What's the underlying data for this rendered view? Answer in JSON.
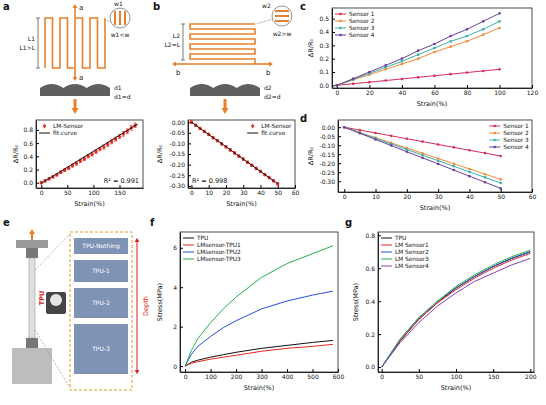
{
  "chart_data": [
    {
      "type": "scatter",
      "panel": "a",
      "xlabel": "Strain(%)",
      "ylabel": "ΔR/R₀",
      "xlim": [
        -10,
        195
      ],
      "ylim": [
        -0.08,
        0.95
      ],
      "xticks": [
        0,
        50,
        100,
        150
      ],
      "yticks": [
        {
          "value": 0,
          "label": "0.0"
        },
        0.2,
        0.4,
        0.6,
        0.8
      ],
      "legend": "upper left",
      "annotation": "R² = 0.991",
      "series": [
        {
          "name": "LM-Sensor",
          "type": "scatter",
          "marker": "circle",
          "color": "#e8271f",
          "x": [
            0,
            7.5,
            15,
            22.5,
            30,
            37.5,
            45,
            52.5,
            60,
            67.5,
            75,
            82.5,
            90,
            97.5,
            105,
            112.5,
            120,
            127.5,
            135,
            142.5,
            150,
            157.5,
            165,
            172.5,
            180
          ],
          "values": [
            0,
            0.03,
            0.06,
            0.09,
            0.12,
            0.16,
            0.19,
            0.22,
            0.26,
            0.29,
            0.33,
            0.36,
            0.4,
            0.43,
            0.47,
            0.51,
            0.54,
            0.58,
            0.62,
            0.66,
            0.7,
            0.74,
            0.78,
            0.83,
            0.87
          ],
          "errors": [
            0.02,
            0.02,
            0.02,
            0.02,
            0.02,
            0.02,
            0.02,
            0.02,
            0.025,
            0.025,
            0.025,
            0.025,
            0.025,
            0.025,
            0.025,
            0.025,
            0.03,
            0.03,
            0.03,
            0.03,
            0.03,
            0.035,
            0.035,
            0.035,
            0.035
          ]
        },
        {
          "name": "fit curve",
          "type": "line",
          "line_style": "solid",
          "color": "#111111",
          "x": [
            0,
            185
          ],
          "values": [
            -0.01,
            0.89
          ]
        }
      ]
    },
    {
      "type": "scatter",
      "panel": "b",
      "xlabel": "Strain(%)",
      "ylabel": "ΔR/R₀",
      "xlim": [
        -2,
        60
      ],
      "ylim": [
        -0.31,
        0.01
      ],
      "xticks": [
        0,
        10,
        20,
        30,
        40,
        50,
        60
      ],
      "yticks": [
        {
          "value": 0,
          "label": "0.00"
        },
        -0.05,
        {
          "value": -0.1,
          "label": "-0.10"
        },
        -0.15,
        {
          "value": -0.2,
          "label": "-0.20"
        },
        -0.25,
        {
          "value": -0.3,
          "label": "-0.30"
        }
      ],
      "legend": "upper right",
      "annotation": "R² = 0.998",
      "series": [
        {
          "name": "LM-Sensor",
          "type": "scatter",
          "marker": "circle",
          "color": "#e8271f",
          "x": [
            0,
            2.5,
            5,
            7.5,
            10,
            12.5,
            15,
            17.5,
            20,
            22.5,
            25,
            27.5,
            30,
            32.5,
            35,
            37.5,
            40,
            42.5,
            45,
            47.5,
            50
          ],
          "values": [
            0,
            -0.015,
            -0.03,
            -0.044,
            -0.058,
            -0.073,
            -0.087,
            -0.102,
            -0.116,
            -0.131,
            -0.145,
            -0.16,
            -0.174,
            -0.189,
            -0.203,
            -0.218,
            -0.232,
            -0.247,
            -0.261,
            -0.276,
            -0.29
          ],
          "errors": [
            0.006,
            0.006,
            0.006,
            0.006,
            0.006,
            0.006,
            0.006,
            0.006,
            0.006,
            0.006,
            0.006,
            0.006,
            0.006,
            0.006,
            0.006,
            0.006,
            0.006,
            0.006,
            0.006,
            0.006,
            0.006
          ]
        },
        {
          "name": "fit curve",
          "type": "line",
          "line_style": "solid",
          "color": "#111111",
          "x": [
            0,
            50
          ],
          "values": [
            0,
            -0.29
          ]
        }
      ]
    },
    {
      "type": "line",
      "panel": "c",
      "xlabel": "Strain(%)",
      "ylabel": "ΔR/R₀",
      "xlim": [
        -3,
        120
      ],
      "ylim": [
        -0.02,
        0.58
      ],
      "xticks": [
        0,
        20,
        40,
        60,
        80,
        100,
        120
      ],
      "yticks": [
        {
          "value": 0,
          "label": "0.0"
        },
        0.1,
        0.2,
        0.3,
        0.4,
        0.5
      ],
      "legend": "upper left",
      "x": [
        0,
        10,
        20,
        30,
        40,
        50,
        60,
        70,
        80,
        90,
        100
      ],
      "series": [
        {
          "name": "Sensor 1",
          "color": "#d62d5a",
          "marker": "circle",
          "values": [
            0,
            0.012,
            0.024,
            0.036,
            0.048,
            0.06,
            0.072,
            0.084,
            0.096,
            0.108,
            0.12
          ]
        },
        {
          "name": "Sensor 2",
          "color": "#f08c3a",
          "marker": "circle",
          "values": [
            0,
            0.04,
            0.08,
            0.12,
            0.16,
            0.2,
            0.25,
            0.29,
            0.33,
            0.38,
            0.43
          ]
        },
        {
          "name": "Sensor 3",
          "color": "#36b3a8",
          "marker": "circle",
          "values": [
            0,
            0.045,
            0.09,
            0.135,
            0.18,
            0.23,
            0.28,
            0.33,
            0.37,
            0.42,
            0.48
          ]
        },
        {
          "name": "Sensor 4",
          "color": "#6b3fa0",
          "marker": "circle",
          "values": [
            0,
            0.05,
            0.1,
            0.15,
            0.2,
            0.26,
            0.31,
            0.37,
            0.42,
            0.48,
            0.54
          ]
        }
      ]
    },
    {
      "type": "line",
      "panel": "d",
      "xlabel": "Strain(%)",
      "ylabel": "ΔR/R₀",
      "xlim": [
        -2,
        60
      ],
      "ylim": [
        -0.36,
        0.04
      ],
      "xticks": [
        0,
        10,
        20,
        30,
        40,
        50,
        60
      ],
      "yticks": [
        {
          "value": 0,
          "label": "0.00"
        },
        -0.05,
        {
          "value": -0.1,
          "label": "-0.10"
        },
        -0.15,
        {
          "value": -0.2,
          "label": "-0.20"
        },
        -0.25,
        {
          "value": -0.3,
          "label": "-0.30"
        }
      ],
      "legend": "upper right",
      "x": [
        0,
        5,
        10,
        15,
        20,
        25,
        30,
        35,
        40,
        45,
        50
      ],
      "series": [
        {
          "name": "Sensor 1",
          "color": "#d62d5a",
          "marker": "circle",
          "values": [
            0,
            -0.016,
            -0.032,
            -0.048,
            -0.064,
            -0.08,
            -0.096,
            -0.112,
            -0.128,
            -0.144,
            -0.16
          ]
        },
        {
          "name": "Sensor 2",
          "color": "#f08c3a",
          "marker": "circle",
          "values": [
            0,
            -0.029,
            -0.058,
            -0.087,
            -0.116,
            -0.145,
            -0.174,
            -0.203,
            -0.232,
            -0.261,
            -0.29
          ]
        },
        {
          "name": "Sensor 3",
          "color": "#36b3a8",
          "marker": "circle",
          "values": [
            0,
            -0.031,
            -0.062,
            -0.093,
            -0.124,
            -0.155,
            -0.186,
            -0.217,
            -0.248,
            -0.279,
            -0.31
          ]
        },
        {
          "name": "Sensor 4",
          "color": "#6b3fa0",
          "marker": "circle",
          "values": [
            0,
            -0.034,
            -0.068,
            -0.102,
            -0.136,
            -0.17,
            -0.204,
            -0.238,
            -0.272,
            -0.306,
            -0.34
          ]
        }
      ]
    },
    {
      "type": "line",
      "panel": "f",
      "xlabel": "Strain(%)",
      "ylabel": "Stress(MPa)",
      "xlim": [
        -20,
        600
      ],
      "ylim": [
        -0.3,
        6.8
      ],
      "xticks": [
        0,
        100,
        200,
        300,
        400,
        500,
        600
      ],
      "yticks": [
        0,
        2,
        4,
        6
      ],
      "legend": "upper left",
      "x": [
        0,
        25,
        50,
        100,
        150,
        200,
        300,
        400,
        500,
        580
      ],
      "series": [
        {
          "name": "TPU",
          "color": "#111111",
          "values": [
            0,
            0.2,
            0.3,
            0.45,
            0.58,
            0.7,
            0.9,
            1.05,
            1.2,
            1.3
          ]
        },
        {
          "name": "LMsensor-TPU1",
          "color": "#e8271f",
          "values": [
            0,
            0.15,
            0.22,
            0.35,
            0.45,
            0.55,
            0.75,
            0.9,
            1.0,
            1.1
          ]
        },
        {
          "name": "LMsensor-TPU2",
          "color": "#2450d8",
          "values": [
            0,
            0.6,
            1.0,
            1.5,
            1.95,
            2.3,
            2.9,
            3.3,
            3.6,
            3.8
          ]
        },
        {
          "name": "LMsensor-TPU3",
          "color": "#23b04a",
          "values": [
            0,
            0.8,
            1.4,
            2.2,
            2.9,
            3.5,
            4.5,
            5.2,
            5.7,
            6.1
          ]
        }
      ]
    },
    {
      "type": "line",
      "panel": "g",
      "xlabel": "Strain(%)",
      "ylabel": "Stress(MPa)",
      "xlim": [
        -5,
        205
      ],
      "ylim": [
        -0.03,
        0.82
      ],
      "xticks": [
        0,
        50,
        100,
        150,
        200
      ],
      "yticks": [
        {
          "value": 0,
          "label": "0.0"
        },
        0.2,
        0.4,
        0.6,
        0.8
      ],
      "legend": "upper left",
      "x": [
        0,
        25,
        50,
        75,
        100,
        125,
        150,
        175,
        200
      ],
      "series": [
        {
          "name": "TPU",
          "color": "#111111",
          "values": [
            0,
            0.16,
            0.29,
            0.39,
            0.48,
            0.55,
            0.61,
            0.66,
            0.7
          ]
        },
        {
          "name": "LM Sensor1",
          "color": "#e8271f",
          "values": [
            0,
            0.16,
            0.29,
            0.39,
            0.47,
            0.54,
            0.6,
            0.65,
            0.69
          ]
        },
        {
          "name": "LM Sensor2",
          "color": "#2450d8",
          "values": [
            0,
            0.17,
            0.3,
            0.4,
            0.48,
            0.55,
            0.61,
            0.66,
            0.7
          ]
        },
        {
          "name": "LM Sensor3",
          "color": "#23b04a",
          "values": [
            0,
            0.17,
            0.3,
            0.4,
            0.49,
            0.56,
            0.62,
            0.67,
            0.71
          ]
        },
        {
          "name": "LM Sensor4",
          "color": "#8e3fb8",
          "values": [
            0,
            0.15,
            0.27,
            0.37,
            0.45,
            0.52,
            0.57,
            0.62,
            0.66
          ]
        }
      ]
    }
  ],
  "diagrams": {
    "a": {
      "force_labels": [
        "a",
        "a"
      ],
      "width_label": "w1",
      "width_relation": "w1<w",
      "length_label": "L1",
      "length_relation": "L1>L",
      "depth_label": "d1",
      "depth_relation": "d1=d"
    },
    "b": {
      "force_labels": [
        "b",
        "b"
      ],
      "width_label": "w2",
      "width_relation": "w2>w",
      "length_label": "L2",
      "length_relation": "L2=L",
      "depth_label": "d2",
      "depth_relation": "d2=d"
    },
    "e": {
      "panel": "e",
      "sample_label": "TPU",
      "layers": [
        "TPU-Nothing",
        "TPU-1",
        "TPU-2",
        "TPU-3"
      ],
      "depth_label": "Depth"
    }
  }
}
